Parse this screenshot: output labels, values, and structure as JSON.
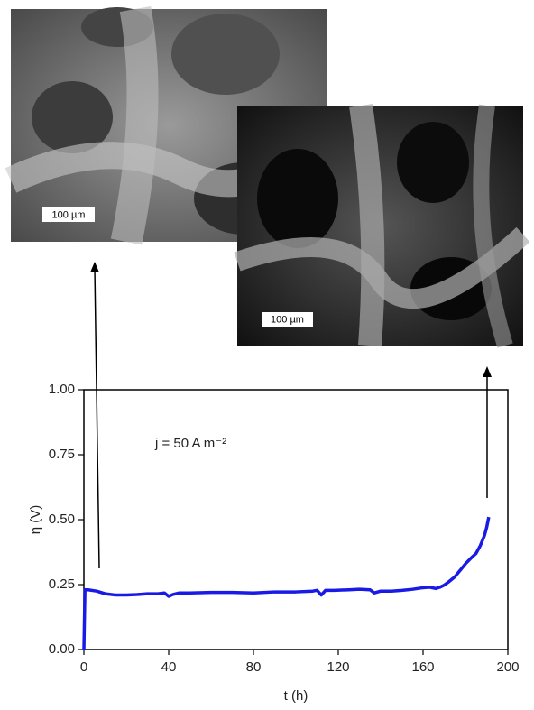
{
  "images": [
    {
      "scale_label": "100 µm"
    },
    {
      "scale_label": "100 µm"
    }
  ],
  "chart_data": {
    "type": "line",
    "annotation": "j = 50 A m⁻²",
    "xlabel": "t (h)",
    "ylabel": "η (V)",
    "x": [
      0,
      0.5,
      2,
      6,
      10,
      15,
      20,
      25,
      30,
      35,
      38,
      40,
      42,
      45,
      50,
      60,
      70,
      80,
      90,
      100,
      108,
      110,
      112,
      114,
      118,
      125,
      130,
      135,
      137,
      140,
      145,
      150,
      155,
      160,
      163,
      166,
      168,
      170,
      172,
      175,
      178,
      180,
      183,
      185,
      187,
      189,
      190,
      191
    ],
    "series": [
      {
        "name": "η",
        "color": "#1a1ae6",
        "values": [
          0,
          0.23,
          0.23,
          0.225,
          0.215,
          0.21,
          0.21,
          0.212,
          0.215,
          0.215,
          0.218,
          0.205,
          0.212,
          0.218,
          0.218,
          0.22,
          0.22,
          0.218,
          0.222,
          0.222,
          0.225,
          0.228,
          0.21,
          0.228,
          0.228,
          0.23,
          0.232,
          0.23,
          0.218,
          0.225,
          0.225,
          0.228,
          0.232,
          0.238,
          0.24,
          0.235,
          0.24,
          0.248,
          0.26,
          0.28,
          0.31,
          0.33,
          0.355,
          0.37,
          0.4,
          0.44,
          0.47,
          0.51
        ]
      }
    ],
    "xlim": [
      0,
      200
    ],
    "xticks": [
      0,
      40,
      80,
      120,
      160,
      200
    ],
    "ylim": [
      0,
      1
    ],
    "yticks": [
      {
        "value": 0,
        "label": "0.00"
      },
      {
        "value": 0.25,
        "label": "0.25"
      },
      {
        "value": 0.5,
        "label": "0.50"
      },
      {
        "value": 0.75,
        "label": "0.75"
      },
      {
        "value": 1,
        "label": "1.00"
      }
    ]
  }
}
